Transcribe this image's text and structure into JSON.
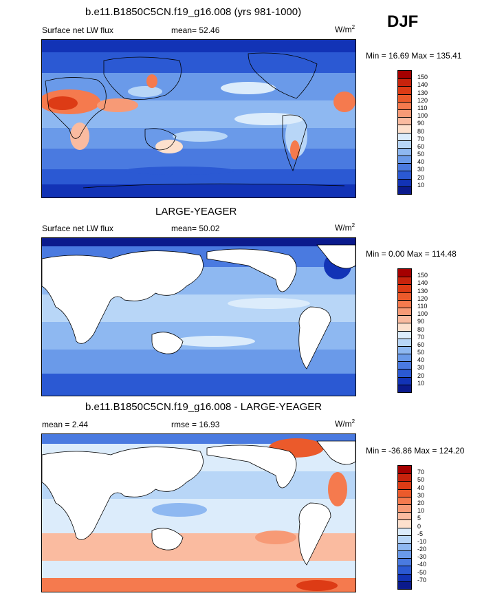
{
  "season": "DJF",
  "panels": [
    {
      "title": "b.e11.B1850C5CN.f19_g16.008 (yrs 981-1000)",
      "variable": "Surface net LW flux",
      "stat": "mean=  52.46",
      "units_base": "W/m",
      "units_exp": "2",
      "minmax": "Min =  16.69 Max = 135.41",
      "colorbar_labels": [
        "150",
        "140",
        "130",
        "120",
        "110",
        "100",
        "90",
        "80",
        "70",
        "60",
        "50",
        "40",
        "30",
        "20",
        "10"
      ],
      "colors": [
        "#a50000",
        "#c7230c",
        "#dd3b15",
        "#eb5a2b",
        "#f57a4e",
        "#f79a76",
        "#fabba0",
        "#fde0cd",
        "#dcecfb",
        "#b8d6f7",
        "#8eb8f1",
        "#6a9ae9",
        "#4a7ae0",
        "#2b59d3",
        "#1233b6",
        "#0b1a8c"
      ],
      "land_white": false
    },
    {
      "title": "LARGE-YEAGER",
      "variable": "Surface net LW flux",
      "stat": "mean=  50.02",
      "units_base": "W/m",
      "units_exp": "2",
      "minmax": "Min =   0.00 Max = 114.48",
      "colorbar_labels": [
        "150",
        "140",
        "130",
        "120",
        "110",
        "100",
        "90",
        "80",
        "70",
        "60",
        "50",
        "40",
        "30",
        "20",
        "10"
      ],
      "colors": [
        "#a50000",
        "#c7230c",
        "#dd3b15",
        "#eb5a2b",
        "#f57a4e",
        "#f79a76",
        "#fabba0",
        "#fde0cd",
        "#dcecfb",
        "#b8d6f7",
        "#8eb8f1",
        "#6a9ae9",
        "#4a7ae0",
        "#2b59d3",
        "#1233b6",
        "#0b1a8c"
      ],
      "land_white": true
    },
    {
      "title": "b.e11.B1850C5CN.f19_g16.008 - LARGE-YEAGER",
      "variable": "mean =   2.44",
      "stat": "rmse =  16.93",
      "units_base": "W/m",
      "units_exp": "2",
      "minmax": "Min = -36.86 Max = 124.20",
      "colorbar_labels": [
        "70",
        "50",
        "40",
        "30",
        "20",
        "10",
        "5",
        "0",
        "-5",
        "-10",
        "-20",
        "-30",
        "-40",
        "-50",
        "-70"
      ],
      "colors": [
        "#a50000",
        "#c7230c",
        "#dd3b15",
        "#eb5a2b",
        "#f57a4e",
        "#f79a76",
        "#fabba0",
        "#fde0cd",
        "#dcecfb",
        "#b8d6f7",
        "#8eb8f1",
        "#6a9ae9",
        "#4a7ae0",
        "#2b59d3",
        "#1233b6",
        "#0b1a8c"
      ],
      "land_white": true
    }
  ]
}
